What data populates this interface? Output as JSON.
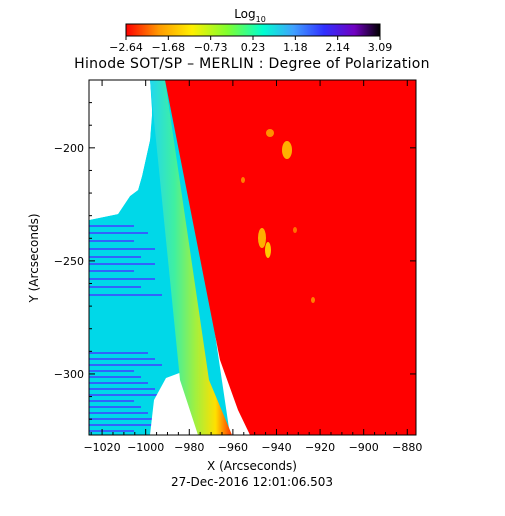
{
  "chart_data": {
    "type": "heatmap",
    "title": "Hinode SOT/SP – MERLIN : Degree of Polarization",
    "xlabel": "X (Arcseconds)",
    "ylabel": "Y (Arcseconds)",
    "timestamp": "27-Dec-2016 12:01:06.503",
    "colorbar": {
      "label_base": "Log",
      "label_sub": "10",
      "tick_labels": [
        "−2.64",
        "−1.68",
        "−0.73",
        "0.23",
        "1.18",
        "2.14",
        "3.09"
      ],
      "range": [
        -2.64,
        3.09
      ],
      "colors": [
        "#ff0000",
        "#ff9a00",
        "#fff000",
        "#7fff30",
        "#00ffd0",
        "#40a0ff",
        "#3030ff",
        "#7000c0",
        "#000000"
      ]
    },
    "xlim": [
      -1026,
      -876
    ],
    "ylim": [
      -327,
      -170
    ],
    "x_ticks": [
      -1020,
      -1000,
      -980,
      -960,
      -940,
      -920,
      -900,
      -880
    ],
    "y_ticks": [
      -200,
      -250,
      -300
    ],
    "x_tick_labels": [
      "−1020",
      "−1000",
      "−980",
      "−960",
      "−940",
      "−920",
      "−900",
      "−880"
    ],
    "y_tick_labels": [
      "−200",
      "−250",
      "−300"
    ],
    "limb_boundary": [
      {
        "y": -170,
        "x": -980
      },
      {
        "y": -250,
        "x": -970
      },
      {
        "y": -327,
        "x": -953
      }
    ],
    "regions": [
      {
        "name": "on-disk",
        "value": -2.64,
        "color": "#ff0000"
      },
      {
        "name": "limb-band",
        "value": -0.5,
        "color": "#ffe000"
      },
      {
        "name": "off-limb",
        "value": 1.2,
        "color": "#00e8e8"
      }
    ]
  }
}
